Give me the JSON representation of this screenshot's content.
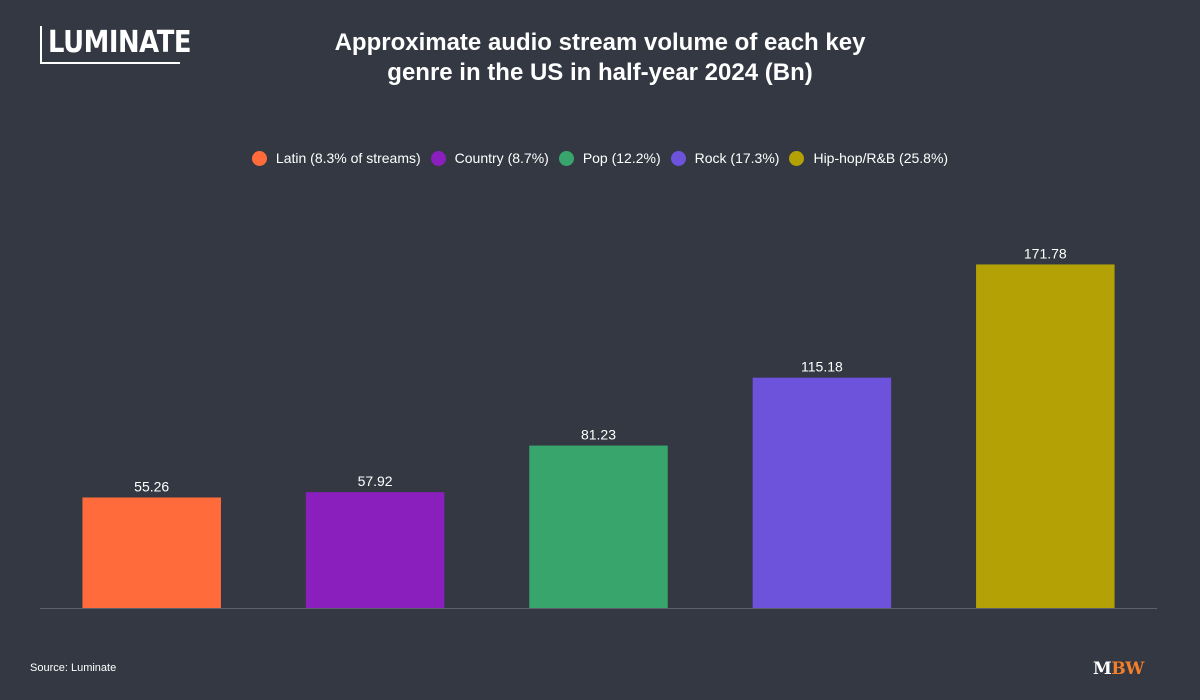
{
  "logo": {
    "text": "LUMINATE"
  },
  "chart_data": {
    "type": "bar",
    "title": "Approximate audio stream volume of each key genre in the US in half-year 2024 (Bn)",
    "title_lines": [
      "Approximate audio stream volume of each key",
      "genre in the US in half-year 2024 (Bn)"
    ],
    "categories": [
      "Latin (8.3% of streams)",
      "Country (8.7%)",
      "Pop (12.2%)",
      "Rock (17.3%)",
      "Hip-hop/R&B (25.8%)"
    ],
    "values": [
      55.26,
      57.92,
      81.23,
      115.18,
      171.78
    ],
    "value_labels": [
      "55.26",
      "57.92",
      "81.23",
      "115.18",
      "171.78"
    ],
    "colors": [
      "#ff6b3b",
      "#8a1fbd",
      "#38a66c",
      "#6d52db",
      "#b3a105"
    ],
    "legend_position": "top-center",
    "xlabel": "",
    "ylabel": "",
    "ylim": [
      0,
      200
    ],
    "grid": false,
    "axis_color": "#5c616b"
  },
  "footer": {
    "source": "Source: Luminate",
    "brand_m": "M",
    "brand_bw": "BW"
  }
}
